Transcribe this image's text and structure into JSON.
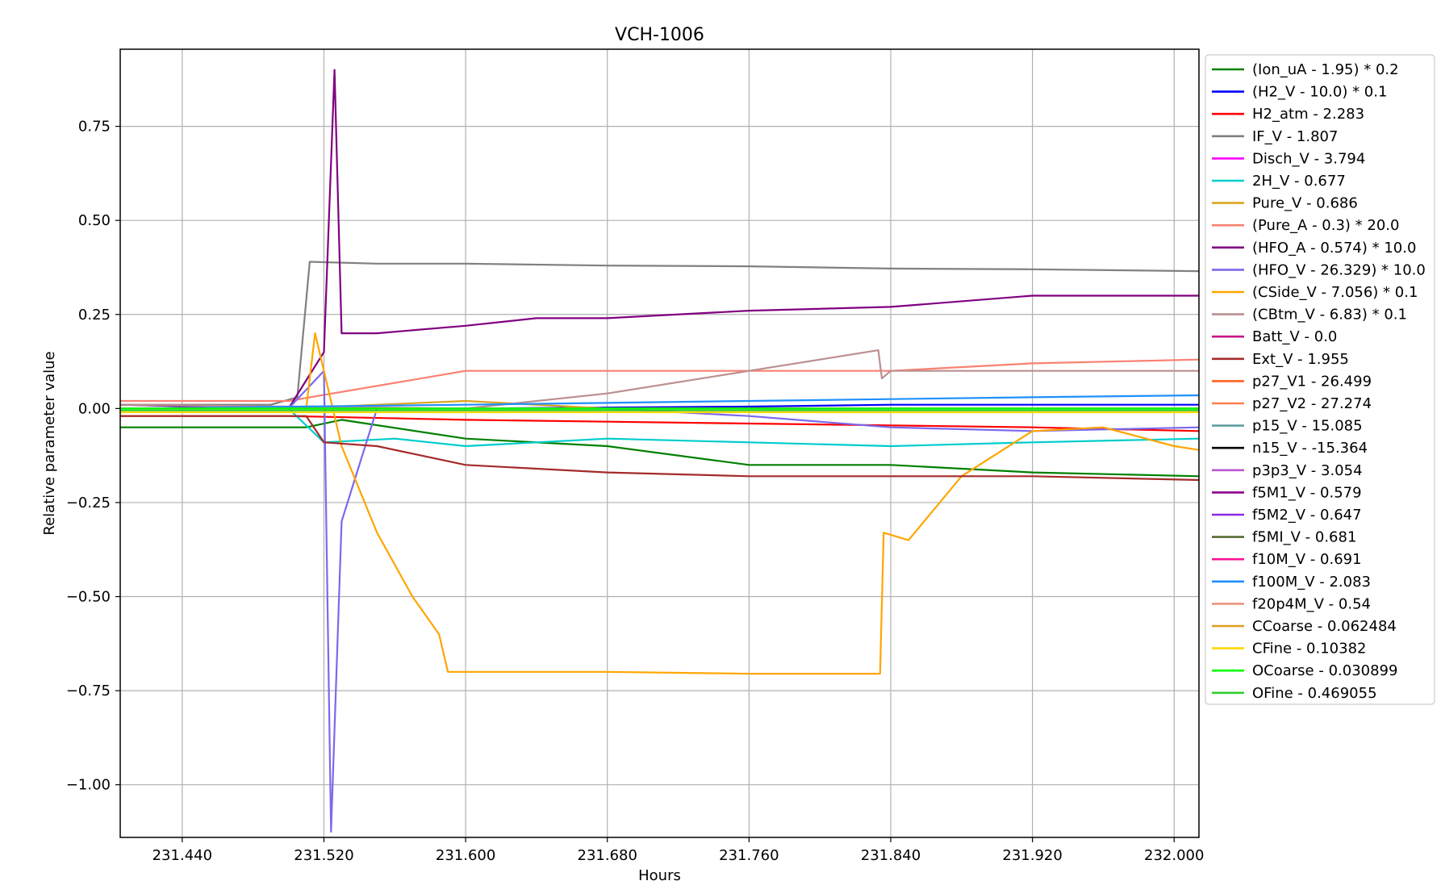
{
  "chart_data": {
    "type": "line",
    "title": "VCH-1006",
    "xlabel": "Hours",
    "ylabel": "Relative parameter value",
    "xlim": [
      231.405,
      232.014
    ],
    "ylim": [
      -1.14,
      0.955
    ],
    "x_ticks": [
      231.44,
      231.52,
      231.6,
      231.68,
      231.76,
      231.84,
      231.92,
      232.0
    ],
    "x_tick_labels": [
      "231.440",
      "231.520",
      "231.600",
      "231.680",
      "231.760",
      "231.840",
      "231.920",
      "232.000"
    ],
    "y_ticks": [
      0.75,
      0.5,
      0.25,
      0.0,
      -0.25,
      -0.5,
      -0.75,
      -1.0
    ],
    "y_tick_labels": [
      "0.75",
      "0.50",
      "0.25",
      "0.00",
      "−0.25",
      "−0.50",
      "−0.75",
      "−1.00"
    ],
    "grid": true,
    "legend_position": "outside-right",
    "series": [
      {
        "name": "(Ion_uA - 1.95) * 0.2",
        "color": "#008000",
        "points": [
          [
            231.405,
            -0.05
          ],
          [
            231.51,
            -0.05
          ],
          [
            231.53,
            -0.03
          ],
          [
            231.6,
            -0.08
          ],
          [
            231.68,
            -0.1
          ],
          [
            231.76,
            -0.15
          ],
          [
            231.84,
            -0.15
          ],
          [
            231.92,
            -0.17
          ],
          [
            232.014,
            -0.18
          ]
        ]
      },
      {
        "name": "(H2_V - 10.0) * 0.1",
        "color": "#0000ff",
        "points": [
          [
            231.405,
            0.0
          ],
          [
            231.6,
            0.0
          ],
          [
            231.76,
            0.005
          ],
          [
            231.84,
            0.01
          ],
          [
            232.014,
            0.01
          ]
        ]
      },
      {
        "name": "H2_atm - 2.283",
        "color": "#ff0000",
        "points": [
          [
            231.405,
            -0.02
          ],
          [
            231.5,
            -0.02
          ],
          [
            231.6,
            -0.03
          ],
          [
            231.68,
            -0.035
          ],
          [
            231.76,
            -0.04
          ],
          [
            231.84,
            -0.045
          ],
          [
            231.92,
            -0.05
          ],
          [
            232.014,
            -0.06
          ]
        ]
      },
      {
        "name": "IF_V - 1.807",
        "color": "#808080",
        "points": [
          [
            231.405,
            0.01
          ],
          [
            231.49,
            0.01
          ],
          [
            231.505,
            0.03
          ],
          [
            231.512,
            0.39
          ],
          [
            231.55,
            0.385
          ],
          [
            231.6,
            0.385
          ],
          [
            231.68,
            0.38
          ],
          [
            231.76,
            0.378
          ],
          [
            231.84,
            0.372
          ],
          [
            231.92,
            0.37
          ],
          [
            232.014,
            0.365
          ]
        ]
      },
      {
        "name": "Disch_V - 3.794",
        "color": "#ff00ff",
        "points": [
          [
            231.405,
            0.0
          ],
          [
            232.014,
            0.0
          ]
        ]
      },
      {
        "name": "2H_V - 0.677",
        "color": "#00cccc",
        "points": [
          [
            231.405,
            0.01
          ],
          [
            231.5,
            0.0
          ],
          [
            231.52,
            -0.09
          ],
          [
            231.56,
            -0.08
          ],
          [
            231.6,
            -0.1
          ],
          [
            231.68,
            -0.08
          ],
          [
            231.76,
            -0.09
          ],
          [
            231.84,
            -0.1
          ],
          [
            231.92,
            -0.09
          ],
          [
            232.014,
            -0.08
          ]
        ]
      },
      {
        "name": "Pure_V - 0.686",
        "color": "#daa520",
        "points": [
          [
            231.405,
            0.0
          ],
          [
            231.5,
            0.0
          ],
          [
            231.6,
            0.02
          ],
          [
            231.68,
            0.0
          ],
          [
            231.76,
            0.0
          ],
          [
            231.84,
            0.0
          ],
          [
            232.014,
            0.0
          ]
        ]
      },
      {
        "name": "(Pure_A - 0.3) * 20.0",
        "color": "#fa8072",
        "points": [
          [
            231.405,
            0.02
          ],
          [
            231.5,
            0.02
          ],
          [
            231.6,
            0.1
          ],
          [
            231.68,
            0.1
          ],
          [
            231.76,
            0.1
          ],
          [
            231.84,
            0.1
          ],
          [
            231.92,
            0.12
          ],
          [
            232.014,
            0.13
          ]
        ]
      },
      {
        "name": "(HFO_A - 0.574) * 10.0",
        "color": "#800080",
        "points": [
          [
            231.405,
            0.01
          ],
          [
            231.5,
            0.0
          ],
          [
            231.52,
            0.15
          ],
          [
            231.526,
            0.9
          ],
          [
            231.53,
            0.2
          ],
          [
            231.55,
            0.2
          ],
          [
            231.6,
            0.22
          ],
          [
            231.64,
            0.24
          ],
          [
            231.68,
            0.24
          ],
          [
            231.76,
            0.26
          ],
          [
            231.84,
            0.27
          ],
          [
            231.92,
            0.3
          ],
          [
            232.014,
            0.3
          ]
        ]
      },
      {
        "name": "(HFO_V - 26.329) * 10.0",
        "color": "#7b68ee",
        "points": [
          [
            231.405,
            0.0
          ],
          [
            231.5,
            0.0
          ],
          [
            231.52,
            0.1
          ],
          [
            231.524,
            -1.125
          ],
          [
            231.53,
            -0.3
          ],
          [
            231.55,
            0.0
          ],
          [
            231.6,
            0.0
          ],
          [
            231.68,
            0.0
          ],
          [
            231.76,
            -0.02
          ],
          [
            231.84,
            -0.05
          ],
          [
            231.92,
            -0.06
          ],
          [
            232.014,
            -0.05
          ]
        ]
      },
      {
        "name": "(CSide_V - 7.056) * 0.1",
        "color": "#ffa500",
        "points": [
          [
            231.405,
            0.0
          ],
          [
            231.51,
            0.0
          ],
          [
            231.515,
            0.2
          ],
          [
            231.53,
            -0.1
          ],
          [
            231.55,
            -0.33
          ],
          [
            231.57,
            -0.5
          ],
          [
            231.585,
            -0.6
          ],
          [
            231.59,
            -0.7
          ],
          [
            231.68,
            -0.7
          ],
          [
            231.76,
            -0.705
          ],
          [
            231.834,
            -0.705
          ],
          [
            231.836,
            -0.33
          ],
          [
            231.85,
            -0.35
          ],
          [
            231.88,
            -0.18
          ],
          [
            231.92,
            -0.06
          ],
          [
            231.96,
            -0.05
          ],
          [
            232.0,
            -0.1
          ],
          [
            232.014,
            -0.11
          ]
        ]
      },
      {
        "name": "(CBtm_V - 6.83) * 0.1",
        "color": "#bc8f8f",
        "points": [
          [
            231.405,
            0.01
          ],
          [
            231.6,
            0.0
          ],
          [
            231.68,
            0.04
          ],
          [
            231.76,
            0.1
          ],
          [
            231.8,
            0.13
          ],
          [
            231.833,
            0.155
          ],
          [
            231.835,
            0.08
          ],
          [
            231.84,
            0.1
          ],
          [
            231.92,
            0.1
          ],
          [
            232.014,
            0.1
          ]
        ]
      },
      {
        "name": "Batt_V - 0.0",
        "color": "#c71585",
        "points": [
          [
            231.405,
            0.0
          ],
          [
            232.014,
            0.0
          ]
        ]
      },
      {
        "name": "Ext_V - 1.955",
        "color": "#a52a2a",
        "points": [
          [
            231.405,
            -0.02
          ],
          [
            231.51,
            -0.02
          ],
          [
            231.52,
            -0.09
          ],
          [
            231.55,
            -0.1
          ],
          [
            231.6,
            -0.15
          ],
          [
            231.68,
            -0.17
          ],
          [
            231.76,
            -0.18
          ],
          [
            231.84,
            -0.18
          ],
          [
            231.92,
            -0.18
          ],
          [
            232.014,
            -0.19
          ]
        ]
      },
      {
        "name": "p27_V1 - 26.499",
        "color": "#ff6020",
        "points": [
          [
            231.405,
            0.0
          ],
          [
            232.014,
            0.0
          ]
        ]
      },
      {
        "name": "p27_V2 - 27.274",
        "color": "#ff7f50",
        "points": [
          [
            231.405,
            0.0
          ],
          [
            232.014,
            0.0
          ]
        ]
      },
      {
        "name": "p15_V - 15.085",
        "color": "#5f9ea0",
        "points": [
          [
            231.405,
            0.0
          ],
          [
            232.014,
            0.0
          ]
        ]
      },
      {
        "name": "n15_V - -15.364",
        "color": "#000000",
        "points": [
          [
            231.405,
            0.0
          ],
          [
            232.014,
            0.0
          ]
        ]
      },
      {
        "name": "p3p3_V - 3.054",
        "color": "#ba55d3",
        "points": [
          [
            231.405,
            0.0
          ],
          [
            232.014,
            0.0
          ]
        ]
      },
      {
        "name": "f5M1_V - 0.579",
        "color": "#8b008b",
        "points": [
          [
            231.405,
            0.0
          ],
          [
            232.014,
            0.0
          ]
        ]
      },
      {
        "name": "f5M2_V - 0.647",
        "color": "#8a2be2",
        "points": [
          [
            231.405,
            0.0
          ],
          [
            232.014,
            0.0
          ]
        ]
      },
      {
        "name": "f5MI_V - 0.681",
        "color": "#556b2f",
        "points": [
          [
            231.405,
            0.0
          ],
          [
            232.014,
            0.0
          ]
        ]
      },
      {
        "name": "f10M_V - 0.691",
        "color": "#ff1493",
        "points": [
          [
            231.405,
            0.0
          ],
          [
            232.014,
            0.0
          ]
        ]
      },
      {
        "name": "f100M_V - 2.083",
        "color": "#1e90ff",
        "points": [
          [
            231.405,
            0.0
          ],
          [
            231.6,
            0.01
          ],
          [
            231.76,
            0.02
          ],
          [
            231.84,
            0.025
          ],
          [
            231.92,
            0.03
          ],
          [
            232.014,
            0.035
          ]
        ]
      },
      {
        "name": "f20p4M_V - 0.54",
        "color": "#e9967a",
        "points": [
          [
            231.405,
            0.0
          ],
          [
            232.014,
            0.0
          ]
        ]
      },
      {
        "name": "CCoarse - 0.062484",
        "color": "#e0a020",
        "points": [
          [
            231.405,
            0.0
          ],
          [
            232.014,
            0.0
          ]
        ]
      },
      {
        "name": "CFine - 0.10382",
        "color": "#ffd700",
        "points": [
          [
            231.405,
            -0.01
          ],
          [
            232.014,
            -0.01
          ]
        ]
      },
      {
        "name": "OCoarse - 0.030899",
        "color": "#00ff00",
        "points": [
          [
            231.405,
            0.0
          ],
          [
            232.014,
            0.0
          ]
        ]
      },
      {
        "name": "OFine - 0.469055",
        "color": "#32cd32",
        "points": [
          [
            231.405,
            -0.005
          ],
          [
            232.014,
            -0.005
          ]
        ]
      }
    ]
  }
}
